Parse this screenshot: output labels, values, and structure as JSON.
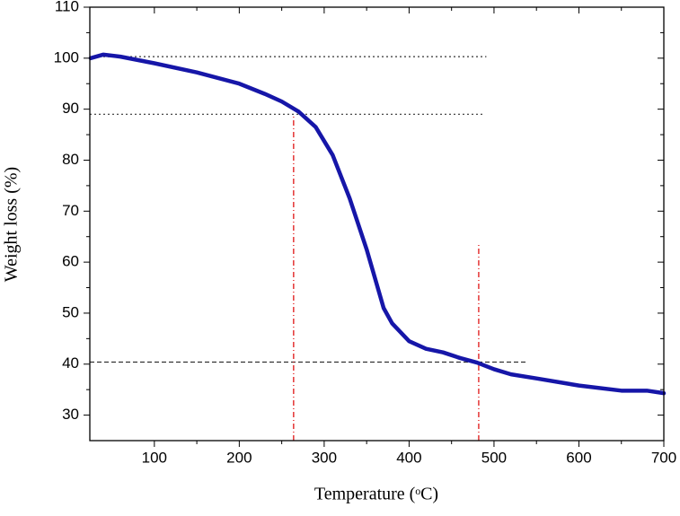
{
  "chart_data": {
    "type": "line",
    "x_label": "Temperature (ᵒC)",
    "y_label": "Weight loss (%)",
    "xlim": [
      24,
      700
    ],
    "ylim": [
      25,
      110
    ],
    "xticks": [
      100,
      200,
      300,
      400,
      500,
      600,
      700
    ],
    "yticks": [
      30,
      40,
      50,
      60,
      70,
      80,
      90,
      100,
      110
    ],
    "series": [
      {
        "color": "#1616a8",
        "x": [
          25,
          40,
          60,
          100,
          150,
          200,
          230,
          250,
          270,
          290,
          310,
          330,
          350,
          370,
          380,
          400,
          420,
          440,
          460,
          480,
          500,
          520,
          550,
          600,
          650,
          680,
          700
        ],
        "values": [
          100,
          100.7,
          100.3,
          99,
          97.2,
          95,
          93,
          91.5,
          89.5,
          86.5,
          81,
          72.5,
          62.5,
          51,
          48,
          44.5,
          43,
          42.3,
          41.2,
          40.3,
          39,
          38,
          37.2,
          35.8,
          34.8,
          34.8,
          34.3
        ]
      }
    ],
    "hlines": [
      {
        "y": 100.3,
        "x": [
          24,
          491
        ],
        "color": "#333333",
        "dash": "dotted"
      },
      {
        "y": 89,
        "x": [
          24,
          487
        ],
        "color": "#333333",
        "dash": "dotted"
      },
      {
        "y": 40.4,
        "x": [
          24,
          540
        ],
        "color": "#333333",
        "dash": "dashed"
      }
    ],
    "vlines": [
      {
        "x": 264,
        "y": [
          25,
          89
        ],
        "color": "#dd0000",
        "dash": "dashdot"
      },
      {
        "x": 482,
        "y": [
          25,
          63.5
        ],
        "color": "#dd0000",
        "dash": "dashdot"
      }
    ]
  }
}
